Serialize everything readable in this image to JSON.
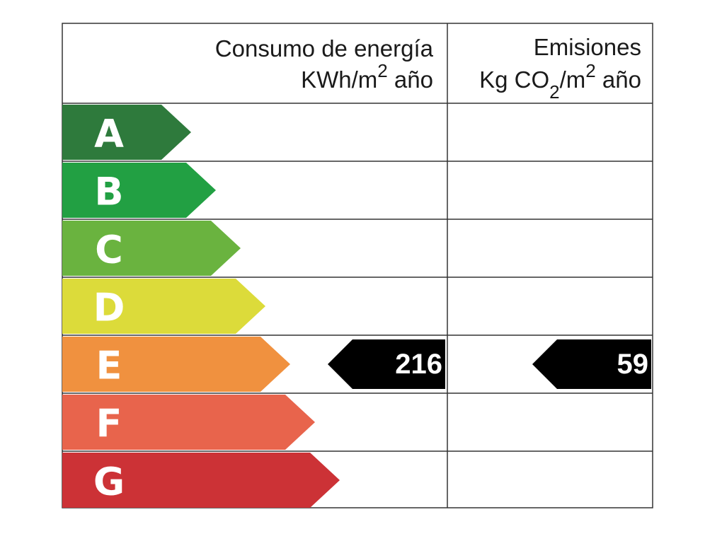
{
  "header": {
    "energy_title": "Consumo de energía",
    "energy_unit": [
      "KWh/m",
      "2",
      " año"
    ],
    "emissions_title": "Emisiones",
    "emissions_unit": [
      "Kg CO",
      "2",
      "/m",
      "2",
      " año"
    ]
  },
  "classes": [
    {
      "letter": "A",
      "color": "#2e7a3c"
    },
    {
      "letter": "B",
      "color": "#22a043"
    },
    {
      "letter": "C",
      "color": "#6ab33f"
    },
    {
      "letter": "D",
      "color": "#dcdb3a"
    },
    {
      "letter": "E",
      "color": "#f0913f"
    },
    {
      "letter": "F",
      "color": "#e8644c"
    },
    {
      "letter": "G",
      "color": "#cc3236"
    }
  ],
  "ratings": {
    "energy": {
      "value": 216,
      "class": "E"
    },
    "emissions": {
      "value": 59,
      "class": "E"
    }
  }
}
